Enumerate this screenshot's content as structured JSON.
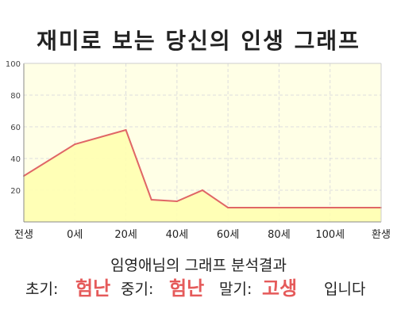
{
  "title": "재미로 보는 당신의 인생 그래프",
  "subtitle": "임영애님의 그래프 분석결과",
  "result": {
    "early_label": "초기:",
    "early_value": "험난",
    "mid_label": "중기:",
    "mid_value": "험난",
    "late_label": "말기:",
    "late_value": "고생",
    "suffix": "입니다"
  },
  "colors": {
    "plot_background": "#ffffe6",
    "area_fill": "#ffffb0",
    "line": "#e06666",
    "grid": "#dddddd",
    "highlight": "#e55a5a"
  },
  "chart_data": {
    "type": "area",
    "title": "재미로 보는 당신의 인생 그래프",
    "xlabel": "",
    "ylabel": "",
    "ylim": [
      0,
      100
    ],
    "y_ticks": [
      20,
      40,
      60,
      80,
      100
    ],
    "x_ticks": [
      {
        "x": -20,
        "label": "전생"
      },
      {
        "x": 0,
        "label": "0세"
      },
      {
        "x": 20,
        "label": "20세"
      },
      {
        "x": 40,
        "label": "40세"
      },
      {
        "x": 60,
        "label": "60세"
      },
      {
        "x": 80,
        "label": "80세"
      },
      {
        "x": 100,
        "label": "100세"
      },
      {
        "x": 120,
        "label": "환생"
      }
    ],
    "xlim": [
      -20,
      120
    ],
    "grid": true,
    "series": [
      {
        "points": [
          {
            "x": -20,
            "y": 29
          },
          {
            "x": 0,
            "y": 49
          },
          {
            "x": 20,
            "y": 58
          },
          {
            "x": 30,
            "y": 14
          },
          {
            "x": 40,
            "y": 13
          },
          {
            "x": 50,
            "y": 20
          },
          {
            "x": 60,
            "y": 9
          },
          {
            "x": 120,
            "y": 9
          }
        ]
      }
    ]
  }
}
